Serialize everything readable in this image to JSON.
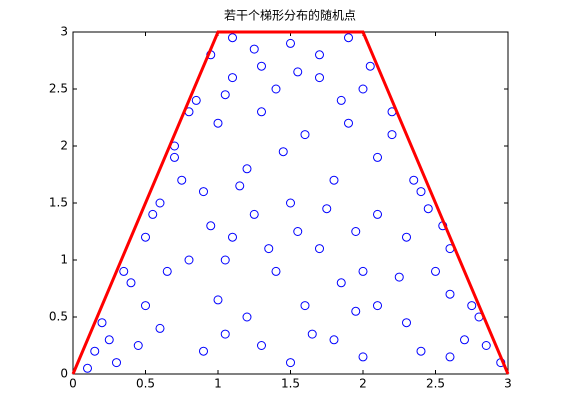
{
  "chart_data": {
    "type": "scatter",
    "title": "若干个梯形分布的随机点",
    "xlim": [
      0,
      3
    ],
    "ylim": [
      0,
      3
    ],
    "xticks": [
      0,
      0.5,
      1,
      1.5,
      2,
      2.5,
      3
    ],
    "yticks": [
      0,
      0.5,
      1,
      1.5,
      2,
      2.5,
      3
    ],
    "series": [
      {
        "style": "marker",
        "color": "#0000ff",
        "x": [
          0.1,
          0.25,
          0.4,
          0.5,
          0.6,
          0.7,
          0.85,
          0.95,
          1.1,
          1.3,
          1.5,
          1.7,
          1.9,
          2.0,
          2.2,
          2.4,
          2.6,
          2.8,
          2.95,
          2.7,
          0.3,
          0.6,
          0.9,
          1.2,
          1.5,
          1.8,
          2.1,
          2.4,
          2.6,
          0.5,
          0.8,
          1.1,
          1.4,
          1.7,
          2.0,
          2.3,
          0.9,
          1.2,
          1.5,
          1.8,
          2.1,
          1.0,
          1.3,
          1.6,
          1.9,
          2.1,
          1.1,
          1.4,
          1.7,
          1.85,
          0.2,
          0.35,
          0.55,
          0.75,
          0.7,
          0.8,
          1.05,
          1.25,
          1.35,
          1.6,
          1.95,
          2.25,
          2.5,
          2.75,
          2.85,
          2.55,
          2.35,
          2.2,
          2.05,
          1.55,
          1.25,
          1.05,
          0.65,
          0.45,
          1.0,
          1.3,
          1.65,
          2.0,
          2.3,
          2.6,
          1.45,
          1.75,
          1.15,
          1.95,
          2.45,
          0.95,
          1.55,
          1.85,
          1.05,
          0.15
        ],
        "values": [
          0.05,
          0.3,
          0.8,
          1.2,
          1.5,
          1.9,
          2.4,
          2.8,
          2.95,
          2.7,
          2.9,
          2.6,
          2.95,
          2.5,
          2.1,
          1.6,
          1.1,
          0.5,
          0.1,
          0.3,
          0.1,
          0.4,
          0.2,
          0.5,
          0.1,
          0.3,
          0.6,
          0.2,
          0.7,
          0.6,
          1.0,
          1.2,
          0.9,
          1.1,
          0.9,
          1.2,
          1.6,
          1.8,
          1.5,
          1.7,
          1.4,
          2.2,
          2.3,
          2.1,
          2.2,
          1.9,
          2.6,
          2.5,
          2.8,
          2.4,
          0.45,
          0.9,
          1.4,
          1.7,
          2.0,
          2.3,
          1.0,
          1.4,
          1.1,
          0.6,
          0.55,
          0.85,
          0.9,
          0.6,
          0.25,
          1.3,
          1.7,
          2.3,
          2.7,
          2.65,
          2.85,
          2.45,
          0.9,
          0.25,
          0.65,
          0.25,
          0.35,
          0.15,
          0.45,
          0.15,
          1.95,
          1.45,
          1.65,
          1.25,
          1.45,
          1.3,
          1.25,
          0.8,
          0.35,
          0.2
        ]
      },
      {
        "style": "line",
        "color": "#ff0000",
        "x": [
          0,
          1,
          2,
          3
        ],
        "values": [
          0,
          3,
          3,
          0
        ]
      }
    ]
  }
}
